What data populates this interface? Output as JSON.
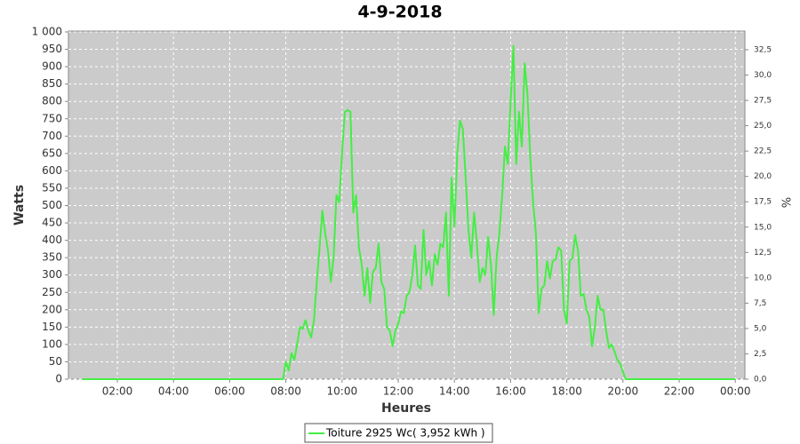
{
  "chart_data": {
    "type": "line",
    "title": "4-9-2018",
    "x_label": "Heures",
    "y_label": "Watts",
    "y2_label": "%",
    "x": [
      0.75,
      7.0,
      7.9,
      8.0,
      8.1,
      8.2,
      8.3,
      8.4,
      8.5,
      8.6,
      8.7,
      8.8,
      8.9,
      9.0,
      9.1,
      9.2,
      9.3,
      9.4,
      9.5,
      9.6,
      9.7,
      9.8,
      9.9,
      10.0,
      10.1,
      10.2,
      10.3,
      10.4,
      10.5,
      10.6,
      10.7,
      10.8,
      10.9,
      11.0,
      11.1,
      11.2,
      11.3,
      11.4,
      11.5,
      11.6,
      11.7,
      11.8,
      11.9,
      12.0,
      12.1,
      12.2,
      12.3,
      12.4,
      12.5,
      12.6,
      12.7,
      12.8,
      12.9,
      13.0,
      13.1,
      13.2,
      13.3,
      13.4,
      13.5,
      13.6,
      13.7,
      13.8,
      13.9,
      14.0,
      14.1,
      14.2,
      14.3,
      14.4,
      14.5,
      14.6,
      14.7,
      14.8,
      14.9,
      15.0,
      15.1,
      15.2,
      15.3,
      15.4,
      15.5,
      15.6,
      15.7,
      15.8,
      15.9,
      16.0,
      16.1,
      16.2,
      16.3,
      16.4,
      16.5,
      16.6,
      16.7,
      16.8,
      16.9,
      17.0,
      17.1,
      17.2,
      17.3,
      17.4,
      17.5,
      17.6,
      17.7,
      17.8,
      17.9,
      18.0,
      18.1,
      18.2,
      18.3,
      18.4,
      18.5,
      18.6,
      18.7,
      18.8,
      18.9,
      19.0,
      19.1,
      19.2,
      19.3,
      19.4,
      19.5,
      19.6,
      19.7,
      19.8,
      19.9,
      20.0,
      20.1,
      24.0
    ],
    "series": [
      {
        "name": "Toiture 2925 Wc( 3,952 kWh )",
        "color": "#44ee44",
        "values": [
          0,
          0,
          0,
          50,
          25,
          75,
          55,
          100,
          150,
          145,
          170,
          140,
          120,
          170,
          280,
          380,
          485,
          420,
          370,
          280,
          350,
          530,
          510,
          650,
          770,
          775,
          770,
          480,
          530,
          380,
          330,
          240,
          320,
          220,
          310,
          320,
          390,
          280,
          260,
          150,
          140,
          95,
          140,
          160,
          195,
          190,
          240,
          250,
          300,
          385,
          270,
          260,
          430,
          300,
          340,
          270,
          360,
          330,
          390,
          380,
          480,
          240,
          580,
          440,
          650,
          745,
          720,
          580,
          430,
          350,
          480,
          390,
          280,
          320,
          300,
          410,
          330,
          185,
          350,
          420,
          530,
          670,
          620,
          800,
          960,
          620,
          770,
          670,
          910,
          820,
          640,
          510,
          420,
          190,
          260,
          270,
          340,
          290,
          340,
          345,
          380,
          370,
          200,
          160,
          340,
          350,
          415,
          370,
          240,
          245,
          200,
          180,
          95,
          150,
          240,
          200,
          200,
          140,
          90,
          100,
          80,
          55,
          45,
          20,
          0,
          0
        ]
      }
    ],
    "xlim": [
      0.26,
      24.34
    ],
    "xticks": [
      {
        "value": 2,
        "label": "02:00"
      },
      {
        "value": 4,
        "label": "04:00"
      },
      {
        "value": 6,
        "label": "06:00"
      },
      {
        "value": 8,
        "label": "08:00"
      },
      {
        "value": 10,
        "label": "10:00"
      },
      {
        "value": 12,
        "label": "12:00"
      },
      {
        "value": 14,
        "label": "14:00"
      },
      {
        "value": 16,
        "label": "16:00"
      },
      {
        "value": 18,
        "label": "18:00"
      },
      {
        "value": 20,
        "label": "20:00"
      },
      {
        "value": 22,
        "label": "22:00"
      },
      {
        "value": 24,
        "label": "00:00"
      }
    ],
    "ylim": [
      0,
      1000
    ],
    "yticks": [
      0,
      50,
      100,
      150,
      200,
      250,
      300,
      350,
      400,
      450,
      500,
      550,
      600,
      650,
      700,
      750,
      800,
      850,
      900,
      950,
      {
        "value": 1000,
        "label": "1 000"
      }
    ],
    "y2lim": [
      0,
      34.25
    ],
    "y2ticks": [
      {
        "value": 0,
        "label": "0,0"
      },
      {
        "value": 2.5,
        "label": "2,5"
      },
      {
        "value": 5,
        "label": "5,0"
      },
      {
        "value": 7.5,
        "label": "7,5"
      },
      {
        "value": 10,
        "label": "10,0"
      },
      {
        "value": 12.5,
        "label": "12,5"
      },
      {
        "value": 15,
        "label": "15,0"
      },
      {
        "value": 17.5,
        "label": "17,5"
      },
      {
        "value": 20,
        "label": "20,0"
      },
      {
        "value": 22.5,
        "label": "22,5"
      },
      {
        "value": 25,
        "label": "25,0"
      },
      {
        "value": 27.5,
        "label": "27,5"
      },
      {
        "value": 30,
        "label": "30,0"
      },
      {
        "value": 32.5,
        "label": "32,5"
      }
    ],
    "grid": true
  }
}
